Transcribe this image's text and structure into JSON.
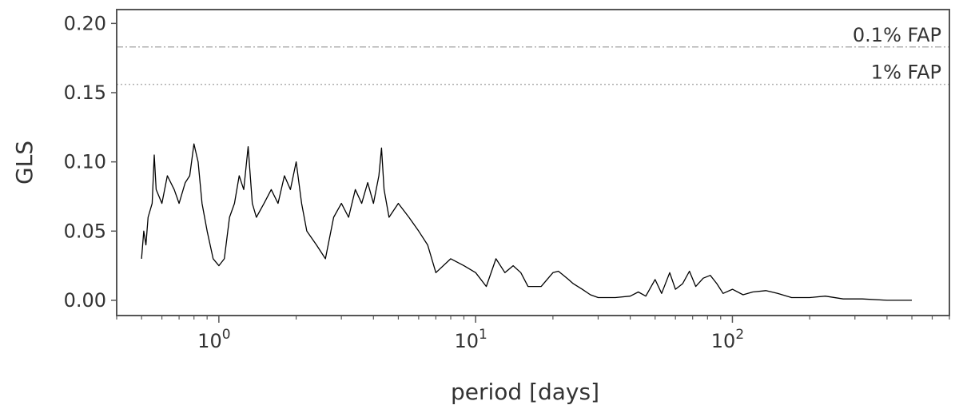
{
  "chart_data": {
    "type": "line",
    "xlabel": "period [days]",
    "ylabel": "GLS",
    "xscale": "log",
    "xlim": [
      0.4,
      700
    ],
    "ylim": [
      -0.011,
      0.21
    ],
    "grid": false,
    "x_major_ticks": [
      {
        "value": 1,
        "base": "10",
        "exp": "0"
      },
      {
        "value": 10,
        "base": "10",
        "exp": "1"
      },
      {
        "value": 100,
        "base": "10",
        "exp": "2"
      }
    ],
    "y_ticks": [
      {
        "value": 0.0,
        "label": "0.00"
      },
      {
        "value": 0.05,
        "label": "0.05"
      },
      {
        "value": 0.1,
        "label": "0.10"
      },
      {
        "value": 0.15,
        "label": "0.15"
      },
      {
        "value": 0.2,
        "label": "0.20"
      }
    ],
    "reference_lines": [
      {
        "label": "0.1% FAP",
        "y": 0.183,
        "style": "dashdot"
      },
      {
        "label": "1% FAP",
        "y": 0.156,
        "style": "dotted"
      }
    ],
    "colors": {
      "series": "#000000",
      "reference": "#b0b0b0",
      "axes": "#555555"
    },
    "series": [
      {
        "x": [
          0.5,
          0.51,
          0.52,
          0.53,
          0.55,
          0.56,
          0.57,
          0.6,
          0.63,
          0.67,
          0.7,
          0.74,
          0.77,
          0.8,
          0.83,
          0.86,
          0.9,
          0.95,
          1.0,
          1.05,
          1.1,
          1.15,
          1.2,
          1.25,
          1.3,
          1.35,
          1.4,
          1.5,
          1.6,
          1.7,
          1.8,
          1.9,
          2.0,
          2.1,
          2.2,
          2.4,
          2.6,
          2.8,
          3.0,
          3.2,
          3.4,
          3.6,
          3.8,
          4.0,
          4.2,
          4.3,
          4.4,
          4.6,
          5.0,
          5.5,
          6.0,
          6.5,
          7.0,
          8.0,
          9.0,
          10.0,
          11.0,
          12.0,
          13.0,
          14.0,
          15.0,
          16.0,
          18.0,
          20.0,
          21.0,
          22.0,
          23.0,
          24.0,
          26.0,
          28.0,
          30.0,
          35.0,
          40.0,
          43.0,
          46.0,
          50.0,
          53.0,
          57.0,
          60.0,
          64.0,
          68.0,
          72.0,
          77.0,
          82.0,
          87.0,
          92.0,
          100.0,
          110.0,
          120.0,
          135.0,
          150.0,
          170.0,
          200.0,
          230.0,
          270.0,
          320.0,
          400.0,
          500.0
        ],
        "y": [
          0.03,
          0.05,
          0.04,
          0.06,
          0.07,
          0.105,
          0.08,
          0.07,
          0.09,
          0.08,
          0.07,
          0.085,
          0.09,
          0.113,
          0.1,
          0.07,
          0.05,
          0.03,
          0.025,
          0.03,
          0.06,
          0.07,
          0.09,
          0.08,
          0.111,
          0.07,
          0.06,
          0.07,
          0.08,
          0.07,
          0.09,
          0.08,
          0.1,
          0.07,
          0.05,
          0.04,
          0.03,
          0.06,
          0.07,
          0.06,
          0.08,
          0.07,
          0.085,
          0.07,
          0.09,
          0.11,
          0.08,
          0.06,
          0.07,
          0.06,
          0.05,
          0.04,
          0.02,
          0.03,
          0.025,
          0.02,
          0.01,
          0.03,
          0.02,
          0.025,
          0.02,
          0.01,
          0.01,
          0.02,
          0.021,
          0.018,
          0.015,
          0.012,
          0.008,
          0.004,
          0.002,
          0.002,
          0.003,
          0.006,
          0.003,
          0.015,
          0.005,
          0.02,
          0.008,
          0.012,
          0.021,
          0.01,
          0.016,
          0.018,
          0.012,
          0.005,
          0.008,
          0.004,
          0.006,
          0.007,
          0.005,
          0.002,
          0.002,
          0.003,
          0.001,
          0.001,
          0.0,
          0.0
        ]
      }
    ]
  }
}
